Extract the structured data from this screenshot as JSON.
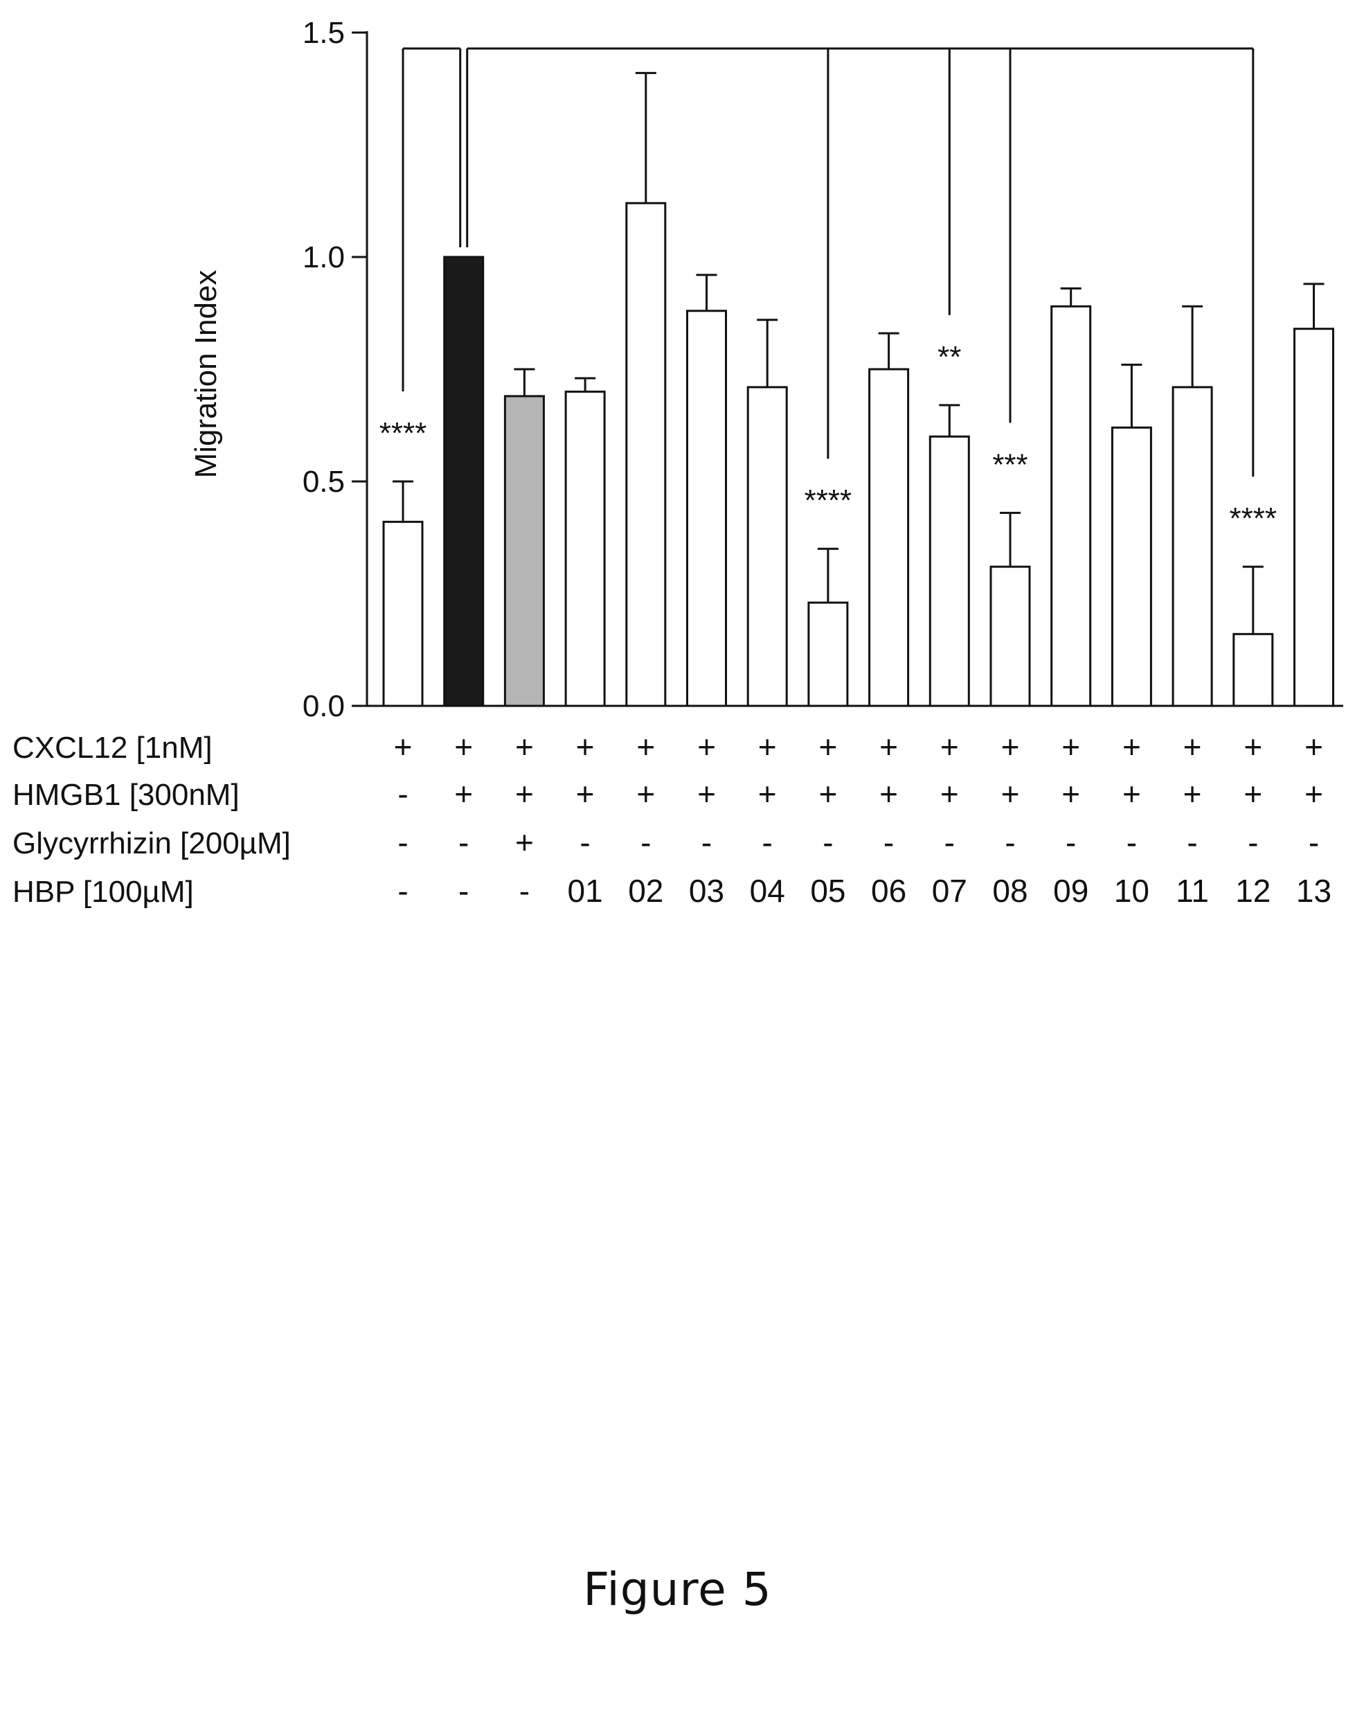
{
  "caption": "Figure 5",
  "chart_data": {
    "type": "bar",
    "ylabel": "Migration Index",
    "xlabel": "",
    "ylim": [
      0,
      1.5
    ],
    "yticks": [
      "0.0",
      "0.5",
      "1.0",
      "1.5"
    ],
    "ytick_values": [
      0,
      0.5,
      1.0,
      1.5
    ],
    "grid": false,
    "bar_colors": [
      "#ffffff",
      "#1a1a1a",
      "#b5b5b5",
      "#ffffff",
      "#ffffff",
      "#ffffff",
      "#ffffff",
      "#ffffff",
      "#ffffff",
      "#ffffff",
      "#ffffff",
      "#ffffff",
      "#ffffff",
      "#ffffff",
      "#ffffff",
      "#ffffff"
    ],
    "values": [
      0.41,
      1.0,
      0.69,
      0.7,
      1.12,
      0.88,
      0.71,
      0.23,
      0.75,
      0.6,
      0.31,
      0.89,
      0.62,
      0.71,
      0.16,
      0.84
    ],
    "errors": [
      0.09,
      0.0,
      0.06,
      0.03,
      0.29,
      0.08,
      0.15,
      0.12,
      0.08,
      0.07,
      0.12,
      0.04,
      0.14,
      0.18,
      0.15,
      0.1
    ],
    "significance": [
      {
        "bar_index": 0,
        "label": "****"
      },
      {
        "bar_index": 7,
        "label": "****"
      },
      {
        "bar_index": 9,
        "label": "**"
      },
      {
        "bar_index": 10,
        "label": "***"
      },
      {
        "bar_index": 14,
        "label": "****"
      }
    ],
    "comparison_reference_bar": 1,
    "conditions": [
      {
        "label": "CXCL12 [1nM]",
        "values": [
          "+",
          "+",
          "+",
          "+",
          "+",
          "+",
          "+",
          "+",
          "+",
          "+",
          "+",
          "+",
          "+",
          "+",
          "+",
          "+"
        ]
      },
      {
        "label": "HMGB1 [300nM]",
        "values": [
          "-",
          "+",
          "+",
          "+",
          "+",
          "+",
          "+",
          "+",
          "+",
          "+",
          "+",
          "+",
          "+",
          "+",
          "+",
          "+"
        ]
      },
      {
        "label": "Glycyrrhizin [200µM]",
        "values": [
          "-",
          "-",
          "+",
          "-",
          "-",
          "-",
          "-",
          "-",
          "-",
          "-",
          "-",
          "-",
          "-",
          "-",
          "-",
          "-"
        ]
      },
      {
        "label": "HBP [100µM]",
        "values": [
          "-",
          "-",
          "-",
          "01",
          "02",
          "03",
          "04",
          "05",
          "06",
          "07",
          "08",
          "09",
          "10",
          "11",
          "12",
          "13"
        ]
      }
    ]
  }
}
